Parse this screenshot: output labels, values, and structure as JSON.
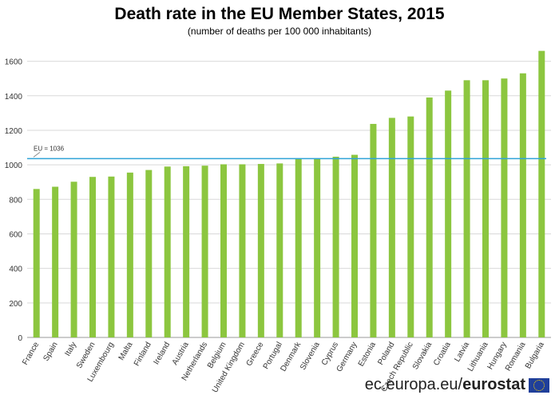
{
  "title": "Death rate in the EU Member States, 2015",
  "subtitle": "(number of deaths per 100 000 inhabitants)",
  "footer": {
    "domain": "ec.europa.eu/",
    "brand": "eurostat"
  },
  "chart_data": {
    "type": "bar",
    "categories": [
      "France",
      "Spain",
      "Italy",
      "Sweden",
      "Luxembourg",
      "Malta",
      "Finland",
      "Ireland",
      "Austria",
      "Netherlands",
      "Belgium",
      "United Kingdom",
      "Greece",
      "Portugal",
      "Denmark",
      "Slovenia",
      "Cyprus",
      "Germany",
      "Estonia",
      "Poland",
      "Czech Republic",
      "Slovakia",
      "Croatia",
      "Latvia",
      "Lithuania",
      "Hungary",
      "Romania",
      "Bulgaria"
    ],
    "values": [
      860,
      873,
      902,
      930,
      932,
      955,
      970,
      990,
      992,
      995,
      1003,
      1003,
      1005,
      1008,
      1035,
      1035,
      1047,
      1058,
      1237,
      1272,
      1280,
      1390,
      1430,
      1490,
      1490,
      1500,
      1530,
      1660
    ],
    "ylim": [
      0,
      1700
    ],
    "yticks": [
      0,
      200,
      400,
      600,
      800,
      1000,
      1200,
      1400,
      1600
    ],
    "reference_line": {
      "label": "EU = 1036",
      "value": 1036,
      "color": "#2fa3d8"
    },
    "bar_color": "#8cc63f",
    "grid": true
  }
}
